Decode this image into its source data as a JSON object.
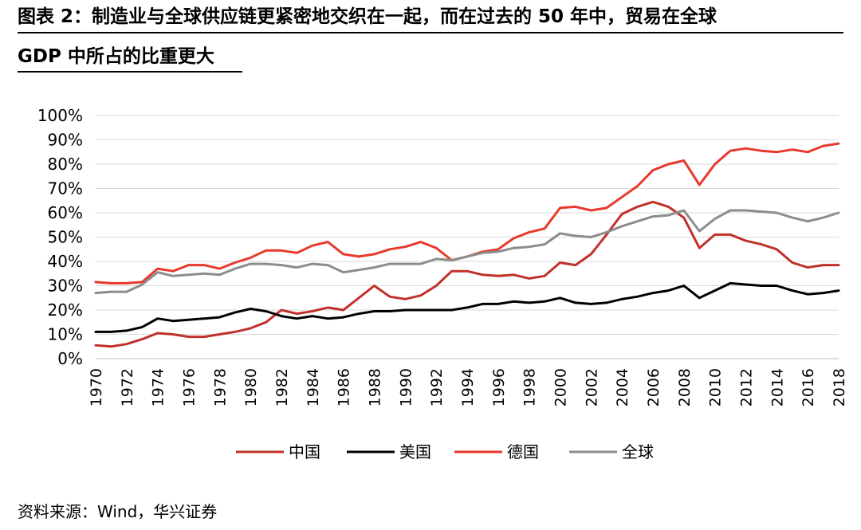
{
  "header": {
    "title_line1": "图表 2：制造业与全球供应链更紧密地交织在一起，而在过去的 50 年中，贸易在全球",
    "title_line2": "GDP 中所占的比重更大"
  },
  "footer": {
    "source": "资料来源：Wind，华兴证券"
  },
  "chart_data": {
    "type": "line",
    "title": "图表 2：制造业与全球供应链更紧密地交织在一起，而在过去的 50 年中，贸易在全球GDP 中所占的比重更大",
    "xlabel": "",
    "ylabel": "",
    "x": [
      1970,
      1971,
      1972,
      1973,
      1974,
      1975,
      1976,
      1977,
      1978,
      1979,
      1980,
      1981,
      1982,
      1983,
      1984,
      1985,
      1986,
      1987,
      1988,
      1989,
      1990,
      1991,
      1992,
      1993,
      1994,
      1995,
      1996,
      1997,
      1998,
      1999,
      2000,
      2001,
      2002,
      2003,
      2004,
      2005,
      2006,
      2007,
      2008,
      2009,
      2010,
      2011,
      2012,
      2013,
      2014,
      2015,
      2016,
      2017,
      2018
    ],
    "x_tick_labels": [
      "1970",
      "1972",
      "1974",
      "1976",
      "1978",
      "1980",
      "1982",
      "1984",
      "1986",
      "1988",
      "1990",
      "1992",
      "1994",
      "1996",
      "1998",
      "2000",
      "2002",
      "2004",
      "2006",
      "2008",
      "2010",
      "2012",
      "2014",
      "2016",
      "2018"
    ],
    "ylim": [
      0,
      100
    ],
    "y_tick_labels": [
      "0%",
      "10%",
      "20%",
      "30%",
      "40%",
      "50%",
      "60%",
      "70%",
      "80%",
      "90%",
      "100%"
    ],
    "grid": true,
    "legend_position": "bottom",
    "series": [
      {
        "name": "中国",
        "color": "#c0312b",
        "values": [
          5.5,
          5,
          6,
          8,
          10.5,
          10,
          9,
          9,
          10,
          11,
          12.5,
          15,
          20,
          18.5,
          19.5,
          21,
          20,
          25,
          30,
          25.5,
          24.5,
          26,
          30,
          36,
          36,
          34.5,
          34,
          34.5,
          33,
          34,
          39.5,
          38.5,
          43,
          51,
          59.5,
          62.5,
          64.5,
          62.5,
          58,
          45.5,
          51,
          51,
          48.5,
          47,
          45,
          39.5,
          37.5,
          38.5,
          38.5
        ]
      },
      {
        "name": "美国",
        "color": "#000000",
        "values": [
          11,
          11,
          11.5,
          13,
          16.5,
          15.5,
          16,
          16.5,
          17,
          19,
          20.5,
          19.5,
          17.5,
          16.5,
          17.5,
          16.5,
          17,
          18.5,
          19.5,
          19.5,
          20,
          20,
          20,
          20,
          21,
          22.5,
          22.5,
          23.5,
          23,
          23.5,
          25,
          23,
          22.5,
          23,
          24.5,
          25.5,
          27,
          28,
          30,
          25,
          28,
          31,
          30.5,
          30,
          30,
          28,
          26.5,
          27,
          28
        ]
      },
      {
        "name": "德国",
        "color": "#e8392d",
        "values": [
          31.5,
          31,
          31,
          31.5,
          37,
          36,
          38.5,
          38.5,
          37,
          39.5,
          41.5,
          44.5,
          44.5,
          43.5,
          46.5,
          48,
          43,
          42,
          43,
          45,
          46,
          48,
          45.5,
          40.5,
          42,
          44,
          45,
          49.5,
          52,
          53.5,
          62,
          62.5,
          61,
          62,
          66.5,
          71,
          77.5,
          80,
          81.5,
          71.5,
          80,
          85.5,
          86.5,
          85.5,
          85,
          86,
          85,
          87.5,
          88.5
        ]
      },
      {
        "name": "全球",
        "color": "#8c8c8c",
        "values": [
          27,
          27.5,
          27.5,
          30.5,
          35.5,
          34,
          34.5,
          35,
          34.5,
          37,
          39,
          39,
          38.5,
          37.5,
          39,
          38.5,
          35.5,
          36.5,
          37.5,
          39,
          39,
          39,
          41,
          40.5,
          42,
          43.5,
          44,
          45.5,
          46,
          47,
          51.5,
          50.5,
          50,
          52,
          54.5,
          56.5,
          58.5,
          59,
          61,
          52.5,
          57.5,
          61,
          61,
          60.5,
          60,
          58,
          56.5,
          58,
          60
        ]
      }
    ]
  }
}
